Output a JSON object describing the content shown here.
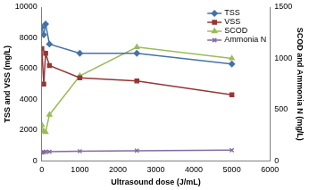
{
  "chart_data": {
    "type": "line",
    "x_label": "Ultrasound dose (J/mL)",
    "y_label": "TSS and VSS (mg/L)",
    "y2_label": "SCOD and Ammonia N (mg/L)",
    "x": [
      0,
      50,
      100,
      200,
      1000,
      2500,
      5000
    ],
    "series": [
      {
        "name": "TSS",
        "color": "#4572a7",
        "marker": "diamond",
        "line_style": "solid",
        "values": [
          8700,
          8200,
          8900,
          7600,
          7000,
          7000,
          6300
        ]
      },
      {
        "name": "VSS",
        "color": "#953735",
        "marker": "square",
        "line_style": "solid",
        "values": [
          7300,
          5000,
          7000,
          6200,
          5400,
          5200,
          4300
        ]
      },
      {
        "name": "SCOD",
        "color": "#9bbb59",
        "marker": "triangle",
        "line_style": "solid",
        "axis": "y2",
        "values": [
          350,
          290,
          280,
          450,
          830,
          1110,
          1000
        ]
      },
      {
        "name": "Ammonia N",
        "color": "#7f6a9f",
        "marker": "x",
        "line_style": "solid",
        "axis": "y2",
        "values": [
          80,
          85,
          90,
          90,
          95,
          100,
          105
        ]
      }
    ],
    "xlim": [
      0,
      6000
    ],
    "xticks": [
      0,
      1000,
      2000,
      3000,
      4000,
      5000,
      6000
    ],
    "ylim": [
      0,
      10000
    ],
    "yticks": [
      0,
      2000,
      4000,
      6000,
      8000,
      10000
    ],
    "y2lim": [
      0,
      1500
    ],
    "y2ticks": [
      0,
      500,
      1000,
      1500
    ],
    "grid": false,
    "legend": "upper right"
  }
}
